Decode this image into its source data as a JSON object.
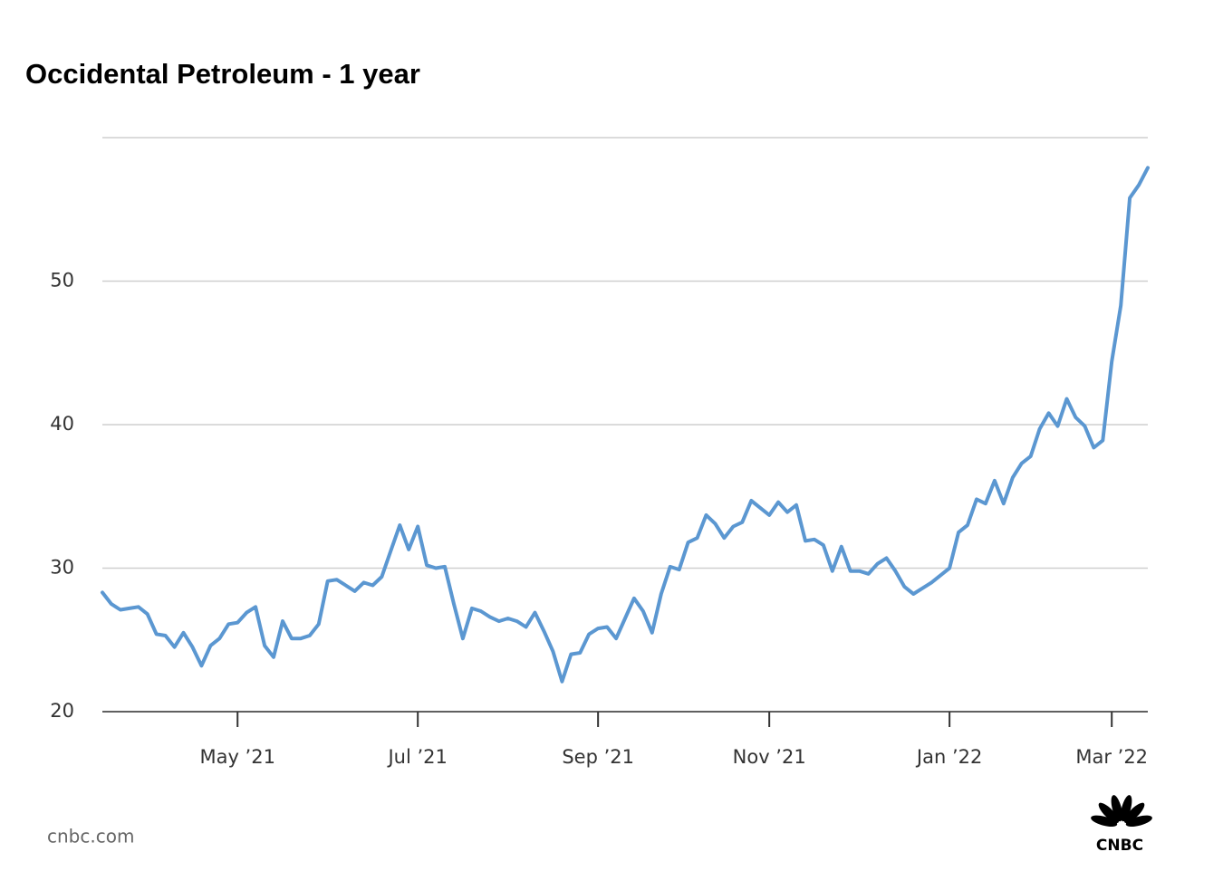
{
  "chart_data": {
    "type": "line",
    "title": "Occidental Petroleum - 1 year",
    "source": "cnbc.com",
    "logo_text": "CNBC",
    "categories": [
      null,
      null,
      null,
      null,
      null,
      null,
      null,
      null,
      null,
      null,
      null,
      null,
      null,
      null,
      null,
      "May ’21",
      null,
      null,
      null,
      null,
      null,
      null,
      null,
      null,
      null,
      null,
      null,
      null,
      null,
      null,
      null,
      null,
      null,
      null,
      null,
      "Jul ’21",
      null,
      null,
      null,
      null,
      null,
      null,
      null,
      null,
      null,
      null,
      null,
      null,
      null,
      null,
      null,
      null,
      null,
      null,
      null,
      "Sep ’21",
      null,
      null,
      null,
      null,
      null,
      null,
      null,
      null,
      null,
      null,
      null,
      null,
      null,
      null,
      null,
      null,
      null,
      null,
      "Nov ’21",
      null,
      null,
      null,
      null,
      null,
      null,
      null,
      null,
      null,
      null,
      null,
      null,
      null,
      null,
      null,
      null,
      null,
      null,
      null,
      "Jan ’22",
      null,
      null,
      null,
      null,
      null,
      null,
      null,
      null,
      null,
      null,
      null,
      null,
      null,
      null,
      null,
      null,
      null,
      "Mar ’22",
      null,
      null,
      null,
      null
    ],
    "series": [
      {
        "name": "Occidental Petroleum",
        "color": "#5b97d1",
        "values": [
          28.3,
          27.5,
          27.1,
          27.2,
          27.3,
          26.8,
          25.4,
          25.3,
          24.5,
          25.5,
          24.5,
          23.2,
          24.6,
          25.1,
          26.1,
          26.2,
          26.9,
          27.3,
          24.6,
          23.8,
          26.3,
          25.1,
          25.1,
          25.3,
          26.1,
          29.1,
          29.2,
          28.8,
          28.4,
          29.0,
          28.8,
          29.4,
          31.2,
          33.0,
          31.3,
          32.9,
          30.2,
          30.0,
          30.1,
          27.5,
          25.1,
          27.2,
          27.0,
          26.6,
          26.3,
          26.5,
          26.3,
          25.9,
          26.9,
          25.6,
          24.2,
          22.1,
          24.0,
          24.1,
          25.4,
          25.8,
          25.9,
          25.1,
          26.5,
          27.9,
          27.0,
          25.5,
          28.2,
          30.1,
          29.9,
          31.8,
          32.1,
          33.7,
          33.1,
          32.1,
          32.9,
          33.2,
          34.7,
          34.2,
          33.7,
          34.6,
          33.9,
          34.4,
          31.9,
          32.0,
          31.6,
          29.8,
          31.5,
          29.8,
          29.8,
          29.6,
          30.3,
          30.7,
          29.8,
          28.7,
          28.2,
          28.6,
          29.0,
          29.5,
          30.0,
          32.5,
          33.0,
          34.8,
          34.5,
          36.1,
          34.5,
          36.3,
          37.3,
          37.8,
          39.7,
          40.8,
          39.9,
          41.8,
          40.5,
          39.9,
          38.4,
          38.9,
          44.4,
          48.3,
          55.8,
          56.7,
          57.9
        ]
      }
    ],
    "ylim": [
      20,
      60
    ],
    "yticks": [
      20,
      30,
      40,
      50
    ],
    "grid": true
  }
}
